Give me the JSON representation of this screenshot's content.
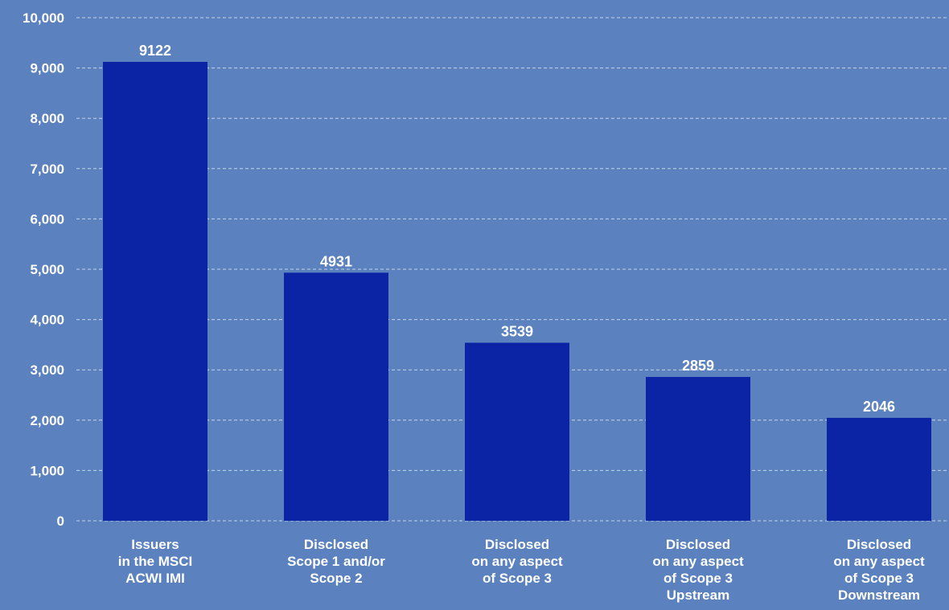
{
  "colors": {
    "background": "#5b82be",
    "bar": "#0b24a6",
    "grid": "#c6d3e8",
    "text": "#ffffff"
  },
  "chart_data": {
    "type": "bar",
    "title": "",
    "xlabel": "",
    "ylabel": "",
    "ylim": [
      0,
      10000
    ],
    "yticks": [
      0,
      1000,
      2000,
      3000,
      4000,
      5000,
      6000,
      7000,
      8000,
      9000,
      10000
    ],
    "ytick_labels": [
      "0",
      "1,000",
      "2,000",
      "3,000",
      "4,000",
      "5,000",
      "6,000",
      "7,000",
      "8,000",
      "9,000",
      "10,000"
    ],
    "grid": true,
    "legend": "none",
    "categories": [
      [
        "Issuers",
        "in the MSCI",
        "ACWI IMI"
      ],
      [
        "Disclosed",
        "Scope 1 and/or",
        "Scope 2"
      ],
      [
        "Disclosed",
        "on any aspect",
        "of Scope 3"
      ],
      [
        "Disclosed",
        "on any aspect",
        "of Scope 3",
        "Upstream"
      ],
      [
        "Disclosed",
        "on any aspect",
        "of Scope 3",
        "Downstream"
      ]
    ],
    "values": [
      9122,
      4931,
      3539,
      2859,
      2046
    ],
    "data_labels": [
      "9122",
      "4931",
      "3539",
      "2859",
      "2046"
    ]
  }
}
